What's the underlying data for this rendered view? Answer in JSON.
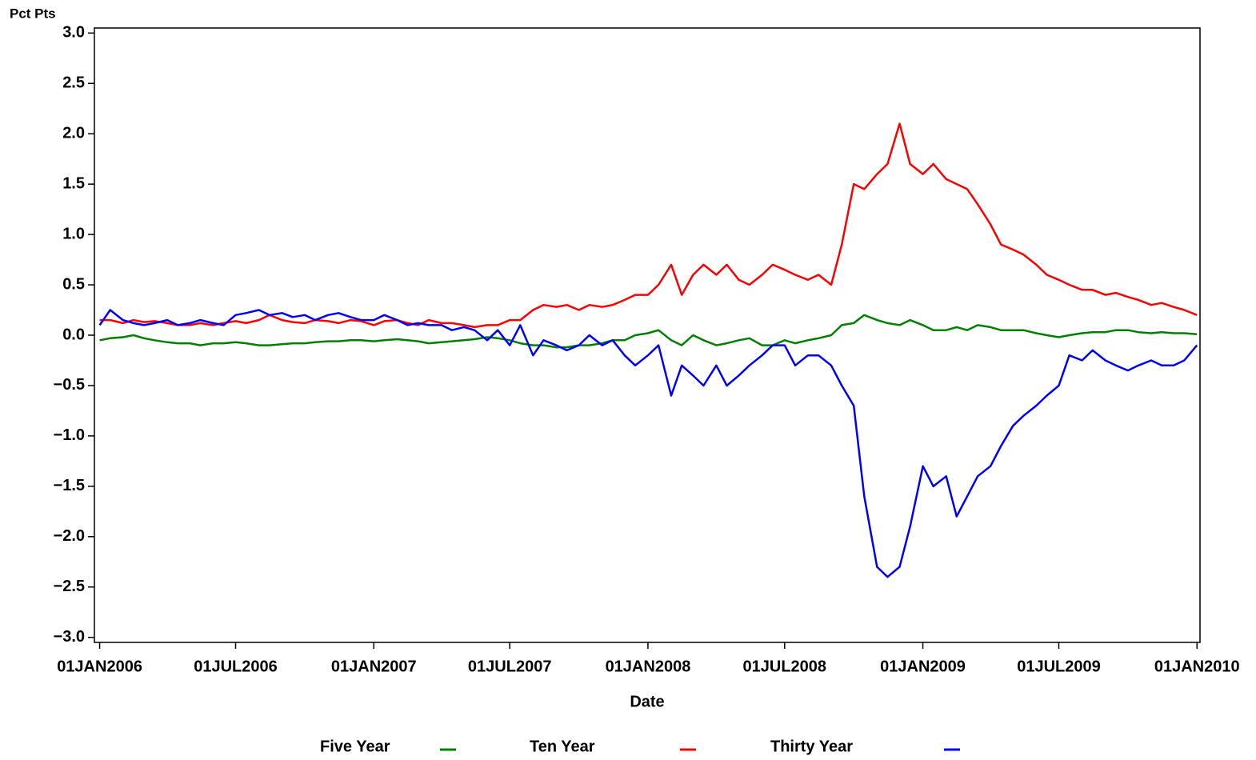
{
  "chart_data": {
    "type": "line",
    "y_label": "Pct Pts",
    "x_label": "Date",
    "x": [
      "2006-01-01",
      "2006-01-15",
      "2006-02-01",
      "2006-02-15",
      "2006-03-01",
      "2006-03-15",
      "2006-04-01",
      "2006-04-15",
      "2006-05-01",
      "2006-05-15",
      "2006-06-01",
      "2006-06-15",
      "2006-07-01",
      "2006-07-15",
      "2006-08-01",
      "2006-08-15",
      "2006-09-01",
      "2006-09-15",
      "2006-10-01",
      "2006-10-15",
      "2006-11-01",
      "2006-11-15",
      "2006-12-01",
      "2006-12-15",
      "2007-01-01",
      "2007-01-15",
      "2007-02-01",
      "2007-02-15",
      "2007-03-01",
      "2007-03-15",
      "2007-04-01",
      "2007-04-15",
      "2007-05-01",
      "2007-05-15",
      "2007-06-01",
      "2007-06-15",
      "2007-07-01",
      "2007-07-15",
      "2007-08-01",
      "2007-08-15",
      "2007-09-01",
      "2007-09-15",
      "2007-10-01",
      "2007-10-15",
      "2007-11-01",
      "2007-11-15",
      "2007-12-01",
      "2007-12-15",
      "2008-01-01",
      "2008-01-15",
      "2008-02-01",
      "2008-02-15",
      "2008-03-01",
      "2008-03-15",
      "2008-04-01",
      "2008-04-15",
      "2008-05-01",
      "2008-05-15",
      "2008-06-01",
      "2008-06-15",
      "2008-07-01",
      "2008-07-15",
      "2008-08-01",
      "2008-08-15",
      "2008-09-01",
      "2008-09-15",
      "2008-10-01",
      "2008-10-15",
      "2008-11-01",
      "2008-11-15",
      "2008-12-01",
      "2008-12-15",
      "2009-01-01",
      "2009-01-15",
      "2009-02-01",
      "2009-02-15",
      "2009-03-01",
      "2009-03-15",
      "2009-04-01",
      "2009-04-15",
      "2009-05-01",
      "2009-05-15",
      "2009-06-01",
      "2009-06-15",
      "2009-07-01",
      "2009-07-15",
      "2009-08-01",
      "2009-08-15",
      "2009-09-01",
      "2009-09-15",
      "2009-10-01",
      "2009-10-15",
      "2009-11-01",
      "2009-11-15",
      "2009-12-01",
      "2009-12-15",
      "2010-01-01"
    ],
    "series": [
      {
        "name": "Five Year",
        "color": "#008000",
        "values": [
          -0.05,
          -0.03,
          -0.02,
          0,
          -0.03,
          -0.05,
          -0.07,
          -0.08,
          -0.08,
          -0.1,
          -0.08,
          -0.08,
          -0.07,
          -0.08,
          -0.1,
          -0.1,
          -0.09,
          -0.08,
          -0.08,
          -0.07,
          -0.06,
          -0.06,
          -0.05,
          -0.05,
          -0.06,
          -0.05,
          -0.04,
          -0.05,
          -0.06,
          -0.08,
          -0.07,
          -0.06,
          -0.05,
          -0.04,
          -0.02,
          -0.03,
          -0.05,
          -0.08,
          -0.1,
          -0.1,
          -0.12,
          -0.12,
          -0.1,
          -0.1,
          -0.08,
          -0.05,
          -0.05,
          0,
          0.02,
          0.05,
          -0.05,
          -0.1,
          0,
          -0.05,
          -0.1,
          -0.08,
          -0.05,
          -0.03,
          -0.1,
          -0.1,
          -0.05,
          -0.08,
          -0.05,
          -0.03,
          0,
          0.1,
          0.12,
          0.2,
          0.15,
          0.12,
          0.1,
          0.15,
          0.1,
          0.05,
          0.05,
          0.08,
          0.05,
          0.1,
          0.08,
          0.05,
          0.05,
          0.05,
          0.02,
          0,
          -0.02,
          0,
          0.02,
          0.03,
          0.03,
          0.05,
          0.05,
          0.03,
          0.02,
          0.03,
          0.02,
          0.02,
          0.01
        ]
      },
      {
        "name": "Ten Year",
        "color": "#ff0000",
        "values": [
          0.15,
          0.15,
          0.12,
          0.15,
          0.13,
          0.14,
          0.12,
          0.1,
          0.1,
          0.12,
          0.1,
          0.12,
          0.14,
          0.12,
          0.15,
          0.2,
          0.15,
          0.13,
          0.12,
          0.15,
          0.14,
          0.12,
          0.15,
          0.14,
          0.1,
          0.14,
          0.15,
          0.12,
          0.1,
          0.15,
          0.12,
          0.12,
          0.1,
          0.08,
          0.1,
          0.1,
          0.15,
          0.15,
          0.25,
          0.3,
          0.28,
          0.3,
          0.25,
          0.3,
          0.28,
          0.3,
          0.35,
          0.4,
          0.4,
          0.5,
          0.7,
          0.4,
          0.6,
          0.7,
          0.6,
          0.7,
          0.55,
          0.5,
          0.6,
          0.7,
          0.65,
          0.6,
          0.55,
          0.6,
          0.5,
          0.9,
          1.5,
          1.45,
          1.6,
          1.7,
          2.1,
          1.7,
          1.6,
          1.7,
          1.55,
          1.5,
          1.45,
          1.3,
          1.1,
          0.9,
          0.85,
          0.8,
          0.7,
          0.6,
          0.55,
          0.5,
          0.45,
          0.45,
          0.4,
          0.42,
          0.38,
          0.35,
          0.3,
          0.32,
          0.28,
          0.25,
          0.2
        ]
      },
      {
        "name": "Thirty Year",
        "color": "#0000ff",
        "values": [
          0.1,
          0.25,
          0.15,
          0.12,
          0.1,
          0.12,
          0.15,
          0.1,
          0.12,
          0.15,
          0.12,
          0.1,
          0.2,
          0.22,
          0.25,
          0.2,
          0.22,
          0.18,
          0.2,
          0.15,
          0.2,
          0.22,
          0.18,
          0.15,
          0.15,
          0.2,
          0.15,
          0.1,
          0.12,
          0.1,
          0.1,
          0.05,
          0.08,
          0.05,
          -0.05,
          0.05,
          -0.1,
          0.1,
          -0.2,
          -0.05,
          -0.1,
          -0.15,
          -0.1,
          0,
          -0.1,
          -0.05,
          -0.2,
          -0.3,
          -0.2,
          -0.1,
          -0.6,
          -0.3,
          -0.4,
          -0.5,
          -0.3,
          -0.5,
          -0.4,
          -0.3,
          -0.2,
          -0.1,
          -0.1,
          -0.3,
          -0.2,
          -0.2,
          -0.3,
          -0.5,
          -0.7,
          -1.6,
          -2.3,
          -2.4,
          -2.3,
          -1.9,
          -1.3,
          -1.5,
          -1.4,
          -1.8,
          -1.6,
          -1.4,
          -1.3,
          -1.1,
          -0.9,
          -0.8,
          -0.7,
          -0.6,
          -0.5,
          -0.2,
          -0.25,
          -0.15,
          -0.25,
          -0.3,
          -0.35,
          -0.3,
          -0.25,
          -0.3,
          -0.3,
          -0.25,
          -0.1
        ]
      }
    ],
    "xlim": [
      "2005-12-25",
      "2010-01-05"
    ],
    "xticks": [
      {
        "value": "2006-01-01",
        "label": "01JAN2006"
      },
      {
        "value": "2006-07-01",
        "label": "01JUL2006"
      },
      {
        "value": "2007-01-01",
        "label": "01JAN2007"
      },
      {
        "value": "2007-07-01",
        "label": "01JUL2007"
      },
      {
        "value": "2008-01-01",
        "label": "01JAN2008"
      },
      {
        "value": "2008-07-01",
        "label": "01JUL2008"
      },
      {
        "value": "2009-01-01",
        "label": "01JAN2009"
      },
      {
        "value": "2009-07-01",
        "label": "01JUL2009"
      },
      {
        "value": "2010-01-01",
        "label": "01JAN2010"
      }
    ],
    "ylim": [
      -3.05,
      3.05
    ],
    "yticks": [
      {
        "value": -3,
        "label": "−3.0"
      },
      {
        "value": -2.5,
        "label": "−2.5"
      },
      {
        "value": -2,
        "label": "−2.0"
      },
      {
        "value": -1.5,
        "label": "−1.5"
      },
      {
        "value": -1,
        "label": "−1.0"
      },
      {
        "value": -0.5,
        "label": "−0.5"
      },
      {
        "value": 0,
        "label": "0.0"
      },
      {
        "value": 0.5,
        "label": "0.5"
      },
      {
        "value": 1,
        "label": "1.0"
      },
      {
        "value": 1.5,
        "label": "1.5"
      },
      {
        "value": 2,
        "label": "2.0"
      },
      {
        "value": 2.5,
        "label": "2.5"
      },
      {
        "value": 3,
        "label": "3.0"
      }
    ]
  }
}
